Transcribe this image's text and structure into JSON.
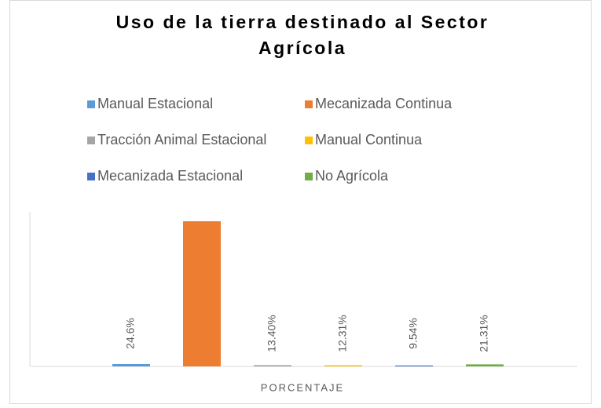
{
  "chart_data": {
    "type": "bar",
    "title": "Uso de la tierra destinado al Sector Agrícola",
    "x_label": "PORCENTAJE",
    "series": [
      {
        "name": "Manual Estacional",
        "color": "#5b9bd5",
        "values": [
          24.6
        ],
        "value_labels": [
          "24.6%"
        ]
      },
      {
        "name": "Mecanizada Continua",
        "color": "#ed7d31",
        "values": [
          1500
        ],
        "value_labels": [
          null
        ]
      },
      {
        "name": "Tracción Animal Estacional",
        "color": "#a5a5a5",
        "values": [
          13.4
        ],
        "value_labels": [
          "13.40%"
        ]
      },
      {
        "name": "Manual Continua",
        "color": "#ffc000",
        "values": [
          12.31
        ],
        "value_labels": [
          "12.31%"
        ]
      },
      {
        "name": "Mecanizada Estacional",
        "color": "#4472c4",
        "values": [
          9.54
        ],
        "value_labels": [
          "9.54%"
        ]
      },
      {
        "name": "No Agrícola",
        "color": "#70ad47",
        "values": [
          21.31
        ],
        "value_labels": [
          "21.31%"
        ]
      }
    ]
  }
}
